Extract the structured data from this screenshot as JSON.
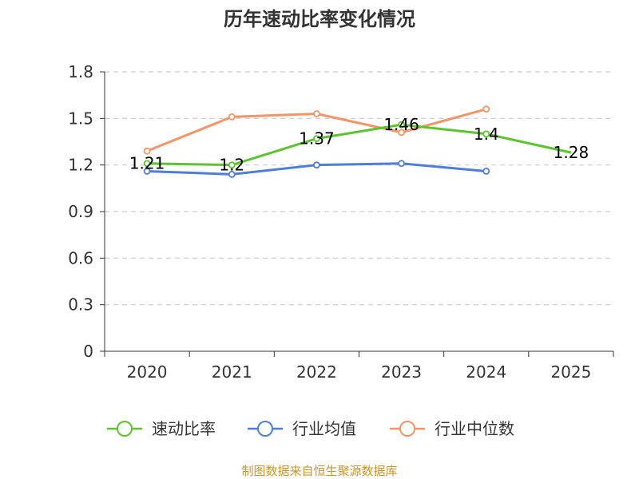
{
  "chart_data": {
    "type": "line",
    "title": "历年速动比率变化情况",
    "categories": [
      "2020",
      "2021",
      "2022",
      "2023",
      "2024",
      "2025"
    ],
    "y_ticks": [
      "0",
      "0.3",
      "0.6",
      "0.9",
      "1.2",
      "1.5",
      "1.8"
    ],
    "ylim": [
      0,
      1.8
    ],
    "grid": true,
    "legend_position": "bottom",
    "series": [
      {
        "name": "速动比率",
        "color": "#5cc42f",
        "values": [
          1.21,
          1.2,
          1.37,
          1.46,
          1.4,
          1.28
        ],
        "data_labels": [
          "1.21",
          "1.2",
          "1.37",
          "1.46",
          "1.4",
          "1.28"
        ]
      },
      {
        "name": "行业均值",
        "color": "#4e7fd8",
        "values": [
          1.16,
          1.14,
          1.2,
          1.21,
          1.16,
          null
        ]
      },
      {
        "name": "行业中位数",
        "color": "#f59466",
        "values": [
          1.29,
          1.51,
          1.53,
          1.41,
          1.56,
          null
        ]
      }
    ]
  },
  "source": "制图数据来自恒生聚源数据库"
}
